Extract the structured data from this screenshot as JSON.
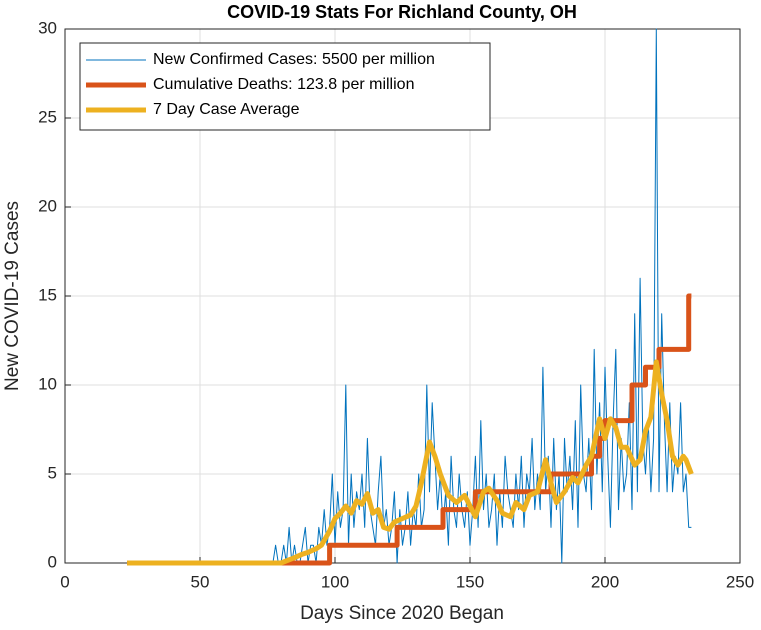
{
  "chart_data": {
    "type": "line",
    "title": "COVID-19 Stats For Richland County, OH",
    "xlabel": "Days Since 2020 Began",
    "ylabel": "New COVID-19 Cases",
    "xlim": [
      0,
      250
    ],
    "xticks": [
      0,
      50,
      100,
      150,
      200,
      250
    ],
    "ylim": [
      0,
      30
    ],
    "yticks": [
      0,
      5,
      10,
      15,
      20,
      25,
      30
    ],
    "grid": true,
    "legend": "upper left",
    "series": [
      {
        "name": "New Confirmed Cases: 5500 per million",
        "color": "#0072bd",
        "width": 1,
        "x": [
          23,
          77,
          78,
          79,
          80,
          81,
          82,
          83,
          84,
          85,
          86,
          87,
          88,
          89,
          90,
          91,
          92,
          93,
          94,
          95,
          96,
          97,
          98,
          99,
          100,
          101,
          102,
          103,
          104,
          105,
          106,
          107,
          108,
          109,
          110,
          111,
          112,
          113,
          114,
          115,
          116,
          117,
          118,
          119,
          120,
          121,
          122,
          123,
          124,
          125,
          126,
          127,
          128,
          129,
          130,
          131,
          132,
          133,
          134,
          135,
          136,
          137,
          138,
          139,
          140,
          141,
          142,
          143,
          144,
          145,
          146,
          147,
          148,
          149,
          150,
          151,
          152,
          153,
          154,
          155,
          156,
          157,
          158,
          159,
          160,
          161,
          162,
          163,
          164,
          165,
          166,
          167,
          168,
          169,
          170,
          171,
          172,
          173,
          174,
          175,
          176,
          177,
          178,
          179,
          180,
          181,
          182,
          183,
          184,
          185,
          186,
          187,
          188,
          189,
          190,
          191,
          192,
          193,
          194,
          195,
          196,
          197,
          198,
          199,
          200,
          201,
          202,
          203,
          204,
          205,
          206,
          207,
          208,
          209,
          210,
          211,
          212,
          213,
          214,
          215,
          216,
          217,
          218,
          219,
          220,
          221,
          222,
          223,
          224,
          225,
          226,
          227,
          228,
          229,
          230,
          231,
          232
        ],
        "values": [
          0,
          0,
          1,
          0,
          0,
          1,
          0,
          2,
          0,
          1,
          0,
          0,
          1,
          2,
          0,
          1,
          1,
          0,
          2,
          1,
          3,
          1,
          2,
          5,
          1,
          4,
          2,
          3,
          10,
          1,
          5,
          2,
          4,
          3,
          5,
          2,
          7,
          3,
          2,
          1,
          4,
          6,
          2,
          3,
          1,
          2,
          4,
          0,
          3,
          1,
          2,
          4,
          1,
          3,
          2,
          5,
          2,
          3,
          10,
          4,
          9,
          6,
          3,
          5,
          2,
          4,
          1,
          6,
          3,
          2,
          5,
          3,
          2,
          4,
          1,
          3,
          6,
          2,
          8,
          3,
          5,
          2,
          3,
          5,
          1,
          4,
          2,
          6,
          4,
          3,
          2,
          5,
          3,
          6,
          2,
          5,
          4,
          7,
          3,
          5,
          3,
          11,
          4,
          6,
          2,
          7,
          3,
          5,
          0,
          7,
          4,
          6,
          3,
          8,
          2,
          10,
          5,
          4,
          7,
          3,
          12,
          5,
          9,
          4,
          11,
          6,
          2,
          8,
          12,
          3,
          7,
          4,
          5,
          9,
          3,
          14,
          4,
          16,
          7,
          5,
          8,
          4,
          7,
          30,
          4,
          14,
          8,
          4,
          9,
          4,
          6,
          5,
          9,
          4,
          5,
          2,
          2
        ]
      },
      {
        "name": "Cumulative Deaths: 123.8 per million",
        "color": "#d95319",
        "width": 5,
        "x": [
          23,
          98,
          98,
          123,
          123,
          140,
          140,
          152,
          152,
          180,
          180,
          195,
          195,
          198,
          198,
          200,
          200,
          210,
          210,
          215,
          215,
          220,
          220,
          231,
          231,
          232
        ],
        "values": [
          0,
          0,
          1,
          1,
          2,
          2,
          3,
          3,
          4,
          4,
          5,
          5,
          6,
          6,
          7,
          7,
          8,
          8,
          10,
          10,
          11,
          11,
          12,
          12,
          15,
          15
        ]
      },
      {
        "name": "7 Day Case Average",
        "color": "#edb120",
        "width": 5,
        "x": [
          23,
          80,
          85,
          88,
          90,
          93,
          95,
          98,
          100,
          102,
          104,
          106,
          108,
          110,
          112,
          114,
          116,
          118,
          120,
          122,
          125,
          128,
          130,
          132,
          135,
          137,
          139,
          142,
          145,
          148,
          150,
          152,
          155,
          157,
          160,
          162,
          165,
          167,
          170,
          172,
          175,
          178,
          180,
          182,
          185,
          188,
          190,
          193,
          195,
          198,
          200,
          202,
          204,
          206,
          208,
          211,
          213,
          215,
          217,
          219,
          221,
          223,
          225,
          227,
          229,
          230,
          232
        ],
        "values": [
          0,
          0,
          0.3,
          0.5,
          0.6,
          0.8,
          1,
          1.8,
          2.5,
          2.8,
          3.2,
          2.8,
          3.5,
          3.3,
          3.9,
          2.8,
          3,
          2,
          1.9,
          2.3,
          2.5,
          2.7,
          3.2,
          4.5,
          6.8,
          6,
          5,
          3.8,
          3.4,
          3.8,
          3.2,
          2.6,
          4,
          4.2,
          3.5,
          2.8,
          2.6,
          3.4,
          3,
          3.8,
          4,
          5.8,
          4.5,
          3.4,
          4,
          4.8,
          4.5,
          5.5,
          6,
          8.1,
          7,
          8.1,
          7.6,
          6.5,
          6.5,
          5.5,
          5.8,
          7.4,
          8.2,
          11.3,
          9.5,
          8,
          6,
          5.5,
          6,
          5.8,
          5
        ]
      }
    ]
  }
}
